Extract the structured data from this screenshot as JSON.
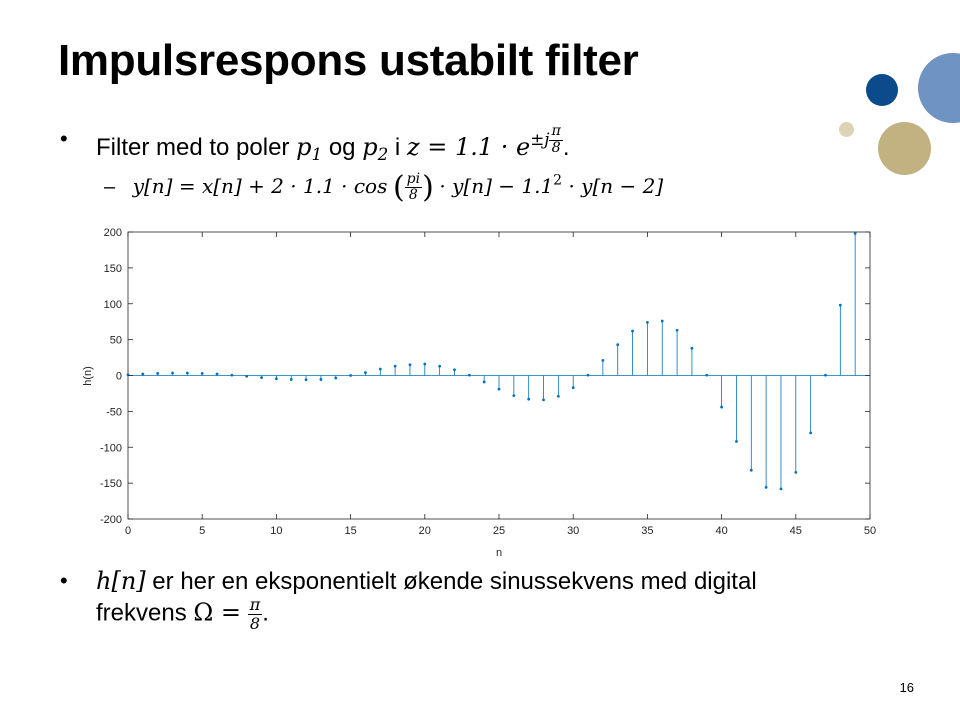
{
  "slide": {
    "title": "Impulsrespons ustabilt filter",
    "page_number": "16",
    "colors": {
      "deco_navy": "#0b4a8b",
      "deco_blue": "#6f93c2",
      "deco_tan": "#c2b181",
      "deco_tan_light": "#ddd4b7",
      "stem": "#0072bd"
    }
  },
  "bullet1": {
    "text_a": "Filter med to poler",
    "p1_base": "p",
    "p1_sub": "1",
    "text_og": "og",
    "p2_base": "p",
    "p2_sub": "2",
    "text_i": "i",
    "z_expr": "z = 1.1 · e",
    "exp_pm": "±j",
    "exp_num": "π",
    "exp_den": "8",
    "end": "."
  },
  "subbullet": {
    "dash": "–",
    "part1": "y[n] = x[n] + 2 · 1.1 · cos",
    "frac_num": "pi",
    "frac_den": "8",
    "part2": "· y[n]  − 1.1",
    "power": "2",
    "part3": " · y[n − 2]"
  },
  "bullet2": {
    "math_h": "h[n]",
    "text_line1": " er her en eksponentielt økende sinussekvens med digital",
    "text_line2": "frekvens",
    "omega": "Ω =",
    "frac_num": "π",
    "frac_den": "8",
    "end": "."
  },
  "chart_data": {
    "type": "stem",
    "xlabel": "n",
    "ylabel": "h(n)",
    "xlim": [
      0,
      50
    ],
    "ylim": [
      -200,
      200
    ],
    "xticks": [
      0,
      5,
      10,
      15,
      20,
      25,
      30,
      35,
      40,
      45,
      50
    ],
    "yticks": [
      200,
      150,
      100,
      50,
      0,
      -50,
      -100,
      -150,
      -200
    ],
    "grid": false,
    "x": [
      0,
      1,
      2,
      3,
      4,
      5,
      6,
      7,
      8,
      9,
      10,
      11,
      12,
      13,
      14,
      15,
      16,
      17,
      18,
      19,
      20,
      21,
      22,
      23,
      24,
      25,
      26,
      27,
      28,
      29,
      30,
      31,
      32,
      33,
      34,
      35,
      36,
      37,
      38,
      39,
      40,
      41,
      42,
      43,
      44,
      45,
      46,
      47,
      48,
      49
    ],
    "values": [
      1,
      2,
      3,
      3.5,
      3.5,
      3,
      2,
      0.5,
      -1,
      -3,
      -4.5,
      -5.5,
      -6,
      -5.5,
      -3.5,
      0,
      4,
      9,
      13,
      15,
      16,
      13,
      8,
      0.5,
      -9,
      -19,
      -28,
      -33,
      -34,
      -29,
      -17,
      0.5,
      21,
      43,
      62,
      74,
      76,
      63,
      38,
      0.5,
      -44,
      -92,
      -132,
      -156,
      -158,
      -135,
      -80,
      0.5,
      98,
      198
    ]
  }
}
